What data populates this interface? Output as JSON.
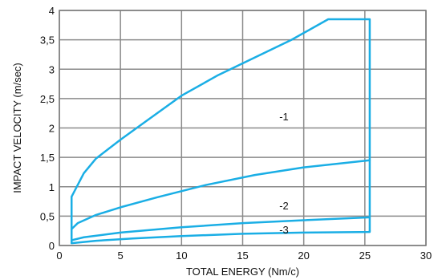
{
  "chart_data": {
    "type": "line",
    "title": "",
    "xlabel": "TOTAL ENERGY (Nm/c)",
    "ylabel": "IMPACT VELOCITY (m/sec)",
    "xlim": [
      0,
      30
    ],
    "ylim": [
      0,
      4
    ],
    "x_ticks": [
      0,
      5,
      10,
      15,
      20,
      25,
      30
    ],
    "x_tick_labels": [
      "0",
      "5",
      "10",
      "15",
      "20",
      "25",
      "30"
    ],
    "y_ticks": [
      0,
      0.5,
      1,
      1.5,
      2,
      2.5,
      3,
      3.5,
      4
    ],
    "y_tick_labels": [
      "0",
      "0,5",
      "1",
      "1,5",
      "2",
      "2,5",
      "3",
      "3,5",
      "4"
    ],
    "grid": true,
    "line_color": "#1aaee5",
    "series": [
      {
        "name": "-1",
        "label_pos": [
          18,
          2.2
        ],
        "x": [
          1,
          1,
          1.3,
          2,
          3,
          5,
          7,
          10,
          13,
          16,
          19,
          22,
          25.4,
          25.4
        ],
        "y": [
          0.3,
          0.83,
          0.95,
          1.23,
          1.48,
          1.8,
          2.1,
          2.55,
          2.9,
          3.2,
          3.5,
          3.85,
          3.85,
          0.25
        ]
      },
      {
        "name": "-2",
        "label_pos": [
          18,
          0.68
        ],
        "x": [
          1,
          1.5,
          3,
          5,
          8,
          12,
          16,
          20,
          25.4
        ],
        "y": [
          0.28,
          0.38,
          0.52,
          0.65,
          0.82,
          1.03,
          1.2,
          1.33,
          1.45
        ]
      },
      {
        "name": "",
        "x": [
          1,
          2,
          5,
          10,
          15,
          20,
          25.4
        ],
        "y": [
          0.09,
          0.14,
          0.22,
          0.31,
          0.38,
          0.43,
          0.48
        ]
      },
      {
        "name": "-3",
        "label_pos": [
          18,
          0.27
        ],
        "x": [
          1,
          1,
          3,
          6,
          10,
          15,
          20,
          25.4,
          25.4
        ],
        "y": [
          0.3,
          0.04,
          0.08,
          0.12,
          0.16,
          0.2,
          0.22,
          0.23,
          0.25
        ]
      }
    ]
  }
}
